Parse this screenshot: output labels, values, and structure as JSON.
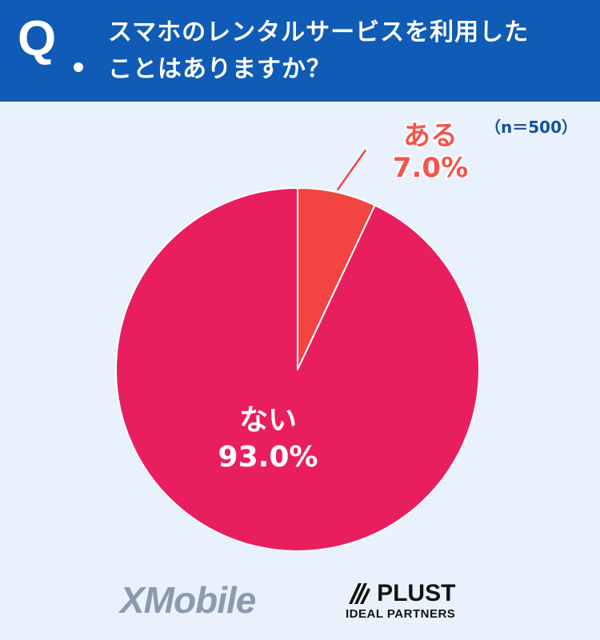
{
  "header": {
    "q_mark": "Q",
    "question_line1": "スマホのレンタルサービスを利用した",
    "question_line2": "ことはありますか？"
  },
  "sample_size": "（n＝500）",
  "chart_data": {
    "type": "pie",
    "slices": [
      {
        "label": "ある",
        "value": 7.0,
        "value_label": "7.0%",
        "color": "#f24440"
      },
      {
        "label": "ない",
        "value": 93.0,
        "value_label": "93.0%",
        "color": "#e91e5e"
      }
    ]
  },
  "logos": {
    "xmobile": "XMobile",
    "plust_name": "PLUST",
    "plust_sub": "IDEAL PARTNERS"
  }
}
